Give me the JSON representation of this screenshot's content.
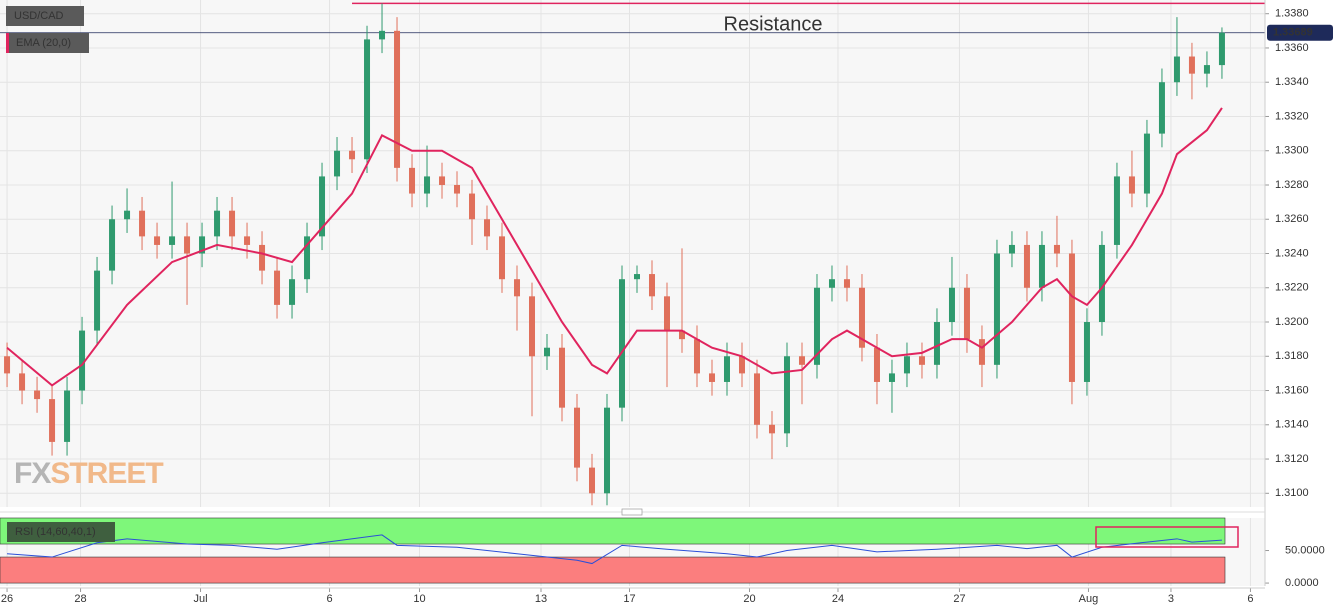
{
  "chart_data": [
    {
      "type": "candlestick",
      "title": "USD/CAD",
      "x": [
        0,
        1,
        2,
        3,
        4,
        5,
        6,
        7,
        8,
        9,
        10,
        11,
        12,
        13,
        14,
        15,
        16,
        17,
        18,
        19,
        20,
        21,
        22,
        23,
        24,
        25,
        26,
        27,
        28,
        29,
        30,
        31,
        32,
        33,
        34,
        35,
        36,
        37,
        38,
        39,
        40,
        41,
        42,
        43,
        44,
        45,
        46,
        47,
        48,
        49,
        50,
        51,
        52,
        53,
        54,
        55,
        56,
        57,
        58,
        59,
        60,
        61,
        62,
        63,
        64,
        65,
        66,
        67,
        68,
        69,
        70,
        71,
        72,
        73,
        74,
        75,
        76,
        77,
        78,
        79,
        80,
        81
      ],
      "open": [
        1.318,
        1.317,
        1.316,
        1.3155,
        1.313,
        1.316,
        1.3195,
        1.323,
        1.326,
        1.3265,
        1.325,
        1.3245,
        1.325,
        1.324,
        1.325,
        1.3265,
        1.325,
        1.3245,
        1.323,
        1.321,
        1.3225,
        1.325,
        1.3285,
        1.33,
        1.3295,
        1.3365,
        1.337,
        1.329,
        1.3275,
        1.3285,
        1.328,
        1.3275,
        1.326,
        1.325,
        1.3225,
        1.3215,
        1.318,
        1.3185,
        1.315,
        1.3115,
        1.31,
        1.315,
        1.3225,
        1.3228,
        1.3215,
        1.3195,
        1.319,
        1.317,
        1.3165,
        1.318,
        1.317,
        1.314,
        1.3135,
        1.318,
        1.3175,
        1.322,
        1.3225,
        1.322,
        1.3185,
        1.3165,
        1.317,
        1.318,
        1.3175,
        1.32,
        1.322,
        1.319,
        1.3175,
        1.324,
        1.3245,
        1.322,
        1.3245,
        1.324,
        1.3165,
        1.32,
        1.3245,
        1.3285,
        1.3275,
        1.331,
        1.334,
        1.3355,
        1.3345,
        1.335
      ],
      "high": [
        1.3188,
        1.3178,
        1.3168,
        1.3163,
        1.3168,
        1.3203,
        1.3238,
        1.3268,
        1.3278,
        1.3273,
        1.3258,
        1.3282,
        1.3258,
        1.3258,
        1.3273,
        1.3273,
        1.3258,
        1.3253,
        1.3238,
        1.3233,
        1.3258,
        1.3293,
        1.3308,
        1.3308,
        1.3373,
        1.3386,
        1.3378,
        1.3298,
        1.3303,
        1.3293,
        1.3288,
        1.3283,
        1.3268,
        1.3258,
        1.3233,
        1.3223,
        1.3193,
        1.3193,
        1.3158,
        1.3123,
        1.3158,
        1.3233,
        1.3233,
        1.3236,
        1.3223,
        1.3243,
        1.3198,
        1.3178,
        1.3188,
        1.3188,
        1.3178,
        1.3148,
        1.3188,
        1.3188,
        1.3228,
        1.3233,
        1.3233,
        1.3228,
        1.3193,
        1.3178,
        1.3188,
        1.3188,
        1.3208,
        1.3238,
        1.3228,
        1.3198,
        1.3248,
        1.3253,
        1.3253,
        1.3253,
        1.3262,
        1.3248,
        1.3208,
        1.3253,
        1.3293,
        1.33,
        1.3318,
        1.3348,
        1.3378,
        1.3363,
        1.3358,
        1.3372
      ],
      "low": [
        1.3162,
        1.3152,
        1.3147,
        1.3122,
        1.3122,
        1.3152,
        1.3187,
        1.3222,
        1.3252,
        1.3242,
        1.3237,
        1.3237,
        1.321,
        1.3232,
        1.3242,
        1.3242,
        1.3237,
        1.3222,
        1.3202,
        1.3202,
        1.3217,
        1.3242,
        1.3277,
        1.3287,
        1.3287,
        1.3357,
        1.3282,
        1.3267,
        1.3267,
        1.3272,
        1.3267,
        1.3245,
        1.3242,
        1.3217,
        1.3195,
        1.3145,
        1.3172,
        1.3142,
        1.3107,
        1.3093,
        1.3093,
        1.3142,
        1.3217,
        1.3207,
        1.3162,
        1.3182,
        1.3162,
        1.3157,
        1.3157,
        1.3162,
        1.3132,
        1.312,
        1.3127,
        1.3152,
        1.3167,
        1.3212,
        1.3212,
        1.3177,
        1.3152,
        1.3147,
        1.3162,
        1.3167,
        1.3167,
        1.3192,
        1.3182,
        1.3162,
        1.3167,
        1.3232,
        1.3212,
        1.3212,
        1.3232,
        1.3152,
        1.3157,
        1.3192,
        1.3237,
        1.3267,
        1.3267,
        1.3302,
        1.3332,
        1.333,
        1.3337,
        1.3342
      ],
      "close": [
        1.317,
        1.316,
        1.3155,
        1.313,
        1.316,
        1.3195,
        1.323,
        1.326,
        1.3265,
        1.325,
        1.3245,
        1.325,
        1.324,
        1.325,
        1.3265,
        1.325,
        1.3245,
        1.323,
        1.321,
        1.3225,
        1.325,
        1.3285,
        1.33,
        1.3295,
        1.3365,
        1.337,
        1.329,
        1.3275,
        1.3285,
        1.328,
        1.3275,
        1.326,
        1.325,
        1.3225,
        1.3215,
        1.318,
        1.3185,
        1.315,
        1.3115,
        1.31,
        1.315,
        1.3225,
        1.3228,
        1.3215,
        1.3195,
        1.319,
        1.317,
        1.3165,
        1.318,
        1.317,
        1.314,
        1.3135,
        1.318,
        1.3175,
        1.322,
        1.3225,
        1.322,
        1.3185,
        1.3165,
        1.317,
        1.318,
        1.3175,
        1.32,
        1.322,
        1.319,
        1.3175,
        1.324,
        1.3245,
        1.322,
        1.3245,
        1.324,
        1.3165,
        1.32,
        1.3245,
        1.3285,
        1.3275,
        1.331,
        1.334,
        1.3355,
        1.3345,
        1.335,
        1.33689
      ],
      "up_color": "#2f9a6e",
      "down_color": "#e0705b",
      "xlim": [
        -0.47,
        83.87
      ],
      "ylim": [
        1.3092,
        1.3388
      ],
      "xticks": [
        {
          "value": 0,
          "label": "26"
        },
        {
          "value": 4.9,
          "label": "28"
        },
        {
          "value": 12.9,
          "label": "Jul"
        },
        {
          "value": 21.5,
          "label": "6"
        },
        {
          "value": 27.5,
          "label": "10"
        },
        {
          "value": 35.6,
          "label": "13"
        },
        {
          "value": 41.5,
          "label": "17"
        },
        {
          "value": 49.5,
          "label": "20"
        },
        {
          "value": 55.4,
          "label": "24"
        },
        {
          "value": 63.5,
          "label": "27"
        },
        {
          "value": 72.1,
          "label": "Aug"
        },
        {
          "value": 77.6,
          "label": "3"
        },
        {
          "value": 82.9,
          "label": "6"
        }
      ],
      "yticks": [
        {
          "value": 1.31,
          "label": "1.3100"
        },
        {
          "value": 1.312,
          "label": "1.3120"
        },
        {
          "value": 1.314,
          "label": "1.3140"
        },
        {
          "value": 1.316,
          "label": "1.3160"
        },
        {
          "value": 1.318,
          "label": "1.3180"
        },
        {
          "value": 1.32,
          "label": "1.3200"
        },
        {
          "value": 1.322,
          "label": "1.3220"
        },
        {
          "value": 1.324,
          "label": "1.3240"
        },
        {
          "value": 1.326,
          "label": "1.3260"
        },
        {
          "value": 1.328,
          "label": "1.3280"
        },
        {
          "value": 1.33,
          "label": "1.3300"
        },
        {
          "value": 1.332,
          "label": "1.3320"
        },
        {
          "value": 1.334,
          "label": "1.3340"
        },
        {
          "value": 1.336,
          "label": "1.3360"
        },
        {
          "value": 1.338,
          "label": "1.3380"
        }
      ],
      "grid": true,
      "overlays": [
        {
          "name": "EMA (20,0)",
          "color": "#e0245e",
          "x": [
            0,
            3,
            5,
            8,
            11,
            14,
            17,
            19,
            21,
            23,
            25,
            27,
            29,
            31,
            33,
            35,
            37,
            39,
            40,
            42,
            43,
            45,
            47,
            49,
            51,
            53,
            55,
            56,
            57,
            59,
            61,
            63,
            64,
            65,
            67,
            69,
            70,
            71,
            72,
            73,
            75,
            77,
            78,
            80,
            81
          ],
          "values": [
            1.3185,
            1.3163,
            1.3175,
            1.321,
            1.3235,
            1.3245,
            1.324,
            1.3235,
            1.3255,
            1.3275,
            1.3309,
            1.33,
            1.33,
            1.329,
            1.326,
            1.323,
            1.32,
            1.3175,
            1.317,
            1.3195,
            1.3195,
            1.3195,
            1.3185,
            1.318,
            1.317,
            1.3172,
            1.319,
            1.3195,
            1.319,
            1.318,
            1.3182,
            1.319,
            1.319,
            1.3185,
            1.32,
            1.322,
            1.3225,
            1.3215,
            1.321,
            1.322,
            1.3245,
            1.3275,
            1.3298,
            1.3312,
            1.3325
          ]
        }
      ],
      "resistance": {
        "label": "Resistance",
        "value": 1.3386,
        "color": "#e0245e"
      },
      "last_price": 1.33689,
      "watermark": {
        "part1": "FX",
        "part2": "STREET"
      }
    },
    {
      "type": "line",
      "title": "RSI (14,60,40,1)",
      "color": "#2b4fd8",
      "x": [
        0,
        3,
        6,
        8,
        12,
        15,
        18,
        21,
        25,
        26,
        30,
        34,
        38,
        39,
        41,
        44,
        48,
        50,
        52,
        55,
        58,
        62,
        66,
        68,
        70,
        71,
        73,
        76,
        78,
        79,
        81
      ],
      "values": [
        45,
        40,
        62,
        68,
        60,
        58,
        52,
        62,
        74,
        58,
        55,
        45,
        35,
        30,
        58,
        52,
        45,
        40,
        50,
        58,
        48,
        52,
        58,
        53,
        58,
        40,
        55,
        63,
        68,
        63,
        66
      ],
      "xlim": [
        -0.47,
        83.87
      ],
      "ylim": [
        -4.5,
        100
      ],
      "yticks": [
        {
          "value": 50,
          "label": "50.0000"
        },
        {
          "value": 0,
          "label": "0.0000"
        }
      ],
      "zones": [
        {
          "from": 60,
          "to": 100,
          "color": "#7ef77a"
        },
        {
          "from": 0,
          "to": 40,
          "color": "#fb7e7e"
        }
      ]
    }
  ]
}
